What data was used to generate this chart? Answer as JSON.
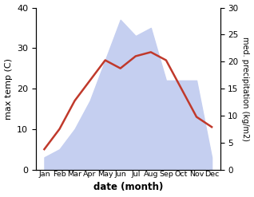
{
  "months": [
    "Jan",
    "Feb",
    "Mar",
    "Apr",
    "May",
    "Jun",
    "Jul",
    "Aug",
    "Sep",
    "Oct",
    "Nov",
    "Dec"
  ],
  "max_temp": [
    5.0,
    10.0,
    17.0,
    22.0,
    27.0,
    25.0,
    28.0,
    29.0,
    27.0,
    20.0,
    13.0,
    10.5
  ],
  "precipitation": [
    3.0,
    5.0,
    10.0,
    17.0,
    27.0,
    37.0,
    33.0,
    35.0,
    22.0,
    22.0,
    22.0,
    3.0
  ],
  "temp_color": "#c0392b",
  "precip_fill_color": "#c5cff0",
  "xlabel": "date (month)",
  "ylabel_left": "max temp (C)",
  "ylabel_right": "med. precipitation (kg/m2)",
  "ylim_left": [
    0,
    40
  ],
  "ylim_right": [
    0,
    30
  ],
  "yticks_left": [
    0,
    10,
    20,
    30,
    40
  ],
  "yticks_right": [
    0,
    5,
    10,
    15,
    20,
    25,
    30
  ],
  "background_color": "#ffffff"
}
